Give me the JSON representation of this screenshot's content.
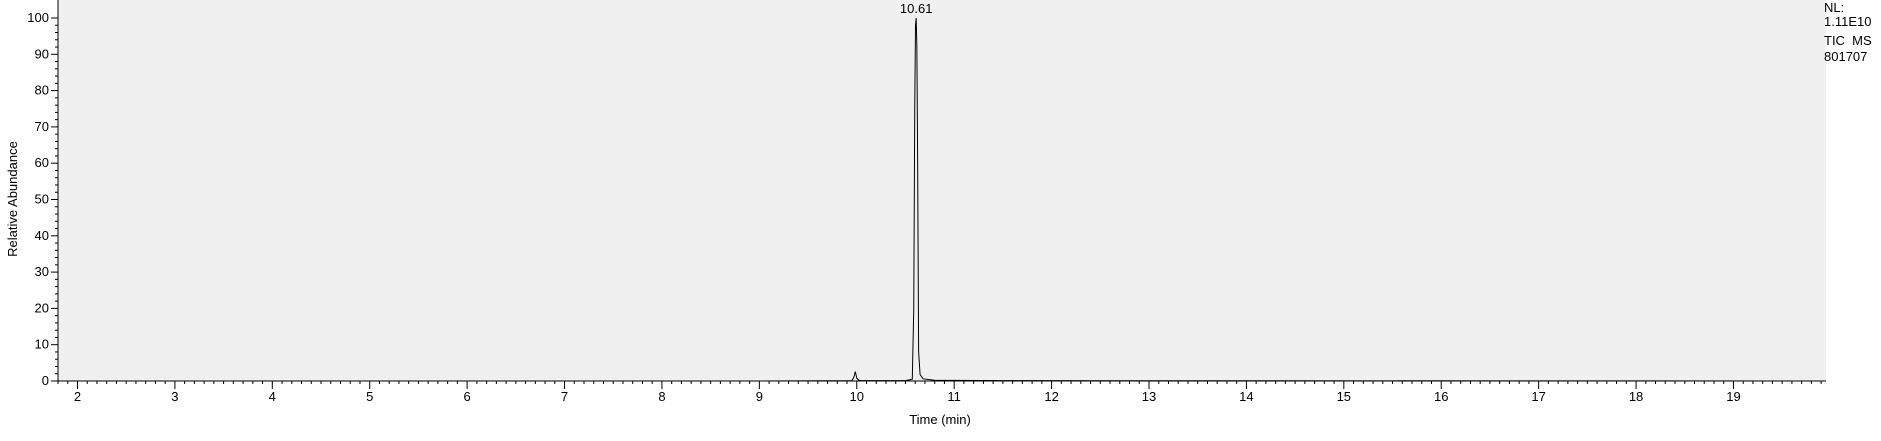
{
  "chart_data": {
    "type": "line",
    "xlabel": "Time (min)",
    "ylabel": "Relative Abundance",
    "xlim": [
      1.8,
      19.95
    ],
    "ylim": [
      0,
      100
    ],
    "x_ticks": [
      2,
      3,
      4,
      5,
      6,
      7,
      8,
      9,
      10,
      11,
      12,
      13,
      14,
      15,
      16,
      17,
      18,
      19
    ],
    "y_ticks": [
      0,
      10,
      20,
      30,
      40,
      50,
      60,
      70,
      80,
      90,
      100
    ],
    "peak_labels": [
      {
        "text": "10.61",
        "x": 10.61,
        "y": 100
      }
    ],
    "series": [
      {
        "x": [
          1.8,
          9.0,
          9.95,
          9.97,
          9.985,
          10.0,
          10.02,
          10.04,
          10.5,
          10.57,
          10.585,
          10.595,
          10.603,
          10.61,
          10.617,
          10.625,
          10.635,
          10.65,
          10.68,
          10.8,
          11.5,
          19.95
        ],
        "values": [
          0.0,
          0.0,
          0.1,
          1.0,
          2.6,
          0.8,
          0.2,
          0.1,
          0.1,
          0.5,
          20,
          75,
          98,
          100,
          92,
          60,
          8,
          1.8,
          0.6,
          0.2,
          0.1,
          0.0
        ]
      }
    ],
    "colors": {
      "plot_background": "#f0f0f0",
      "trace": "#000000",
      "axis": "#000000"
    }
  },
  "info": {
    "nl_label": "NL:",
    "nl_value": "1.11E10",
    "trace_type": "TIC  MS",
    "sample_id": "801707"
  }
}
